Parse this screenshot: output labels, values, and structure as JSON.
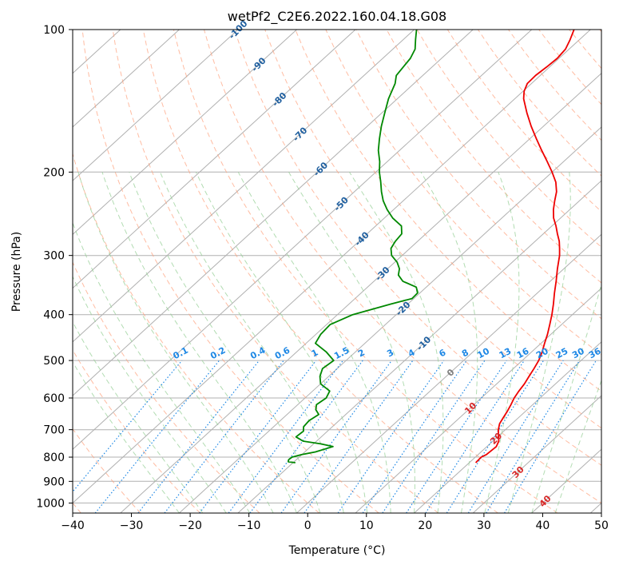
{
  "chart_data": {
    "type": "line",
    "title": "wetPf2_C2E6.2022.160.04.18.G08",
    "xlabel": "Temperature (°C)",
    "ylabel": "Pressure (hPa)",
    "xlim": [
      -40,
      50
    ],
    "ylim": [
      1050,
      100
    ],
    "y_scale": "log",
    "skew": true,
    "grid": true,
    "x_ticks": [
      -40,
      -30,
      -20,
      -10,
      0,
      10,
      20,
      30,
      40,
      50
    ],
    "y_ticks": [
      100,
      200,
      300,
      400,
      500,
      600,
      700,
      800,
      900,
      1000
    ],
    "series": [
      {
        "key": "temperature",
        "color": "#ee0000",
        "points": [
          [
            822,
            21.1
          ],
          [
            800,
            21.0
          ],
          [
            790,
            21.4
          ],
          [
            760,
            21.6
          ],
          [
            740,
            21.0
          ],
          [
            720,
            19.9
          ],
          [
            700,
            18.8
          ],
          [
            680,
            17.9
          ],
          [
            660,
            17.4
          ],
          [
            640,
            16.9
          ],
          [
            620,
            16.3
          ],
          [
            600,
            15.6
          ],
          [
            580,
            15.1
          ],
          [
            560,
            14.7
          ],
          [
            540,
            14.1
          ],
          [
            520,
            13.5
          ],
          [
            500,
            12.8
          ],
          [
            480,
            11.8
          ],
          [
            460,
            10.6
          ],
          [
            440,
            9.4
          ],
          [
            420,
            8.0
          ],
          [
            400,
            6.5
          ],
          [
            380,
            4.8
          ],
          [
            360,
            2.9
          ],
          [
            340,
            1.0
          ],
          [
            320,
            -1.1
          ],
          [
            300,
            -3.2
          ],
          [
            290,
            -4.5
          ],
          [
            280,
            -5.9
          ],
          [
            270,
            -7.6
          ],
          [
            260,
            -9.3
          ],
          [
            250,
            -11.2
          ],
          [
            240,
            -12.8
          ],
          [
            230,
            -14.2
          ],
          [
            220,
            -15.6
          ],
          [
            210,
            -17.5
          ],
          [
            200,
            -20.0
          ],
          [
            190,
            -22.8
          ],
          [
            180,
            -25.8
          ],
          [
            170,
            -28.9
          ],
          [
            160,
            -32.1
          ],
          [
            150,
            -35.3
          ],
          [
            140,
            -38.5
          ],
          [
            135,
            -39.8
          ],
          [
            130,
            -40.7
          ],
          [
            125,
            -40.8
          ],
          [
            120,
            -40.5
          ],
          [
            115,
            -40.3
          ],
          [
            110,
            -40.6
          ],
          [
            105,
            -41.6
          ],
          [
            100,
            -42.8
          ]
        ]
      },
      {
        "key": "dewpoint",
        "color": "#008800",
        "points": [
          [
            822,
            -9.6
          ],
          [
            818,
            -11.0
          ],
          [
            810,
            -11.3
          ],
          [
            800,
            -11.2
          ],
          [
            790,
            -10.0
          ],
          [
            780,
            -8.2
          ],
          [
            760,
            -6.2
          ],
          [
            750,
            -8.8
          ],
          [
            740,
            -12.3
          ],
          [
            725,
            -14.3
          ],
          [
            705,
            -14.1
          ],
          [
            690,
            -14.9
          ],
          [
            670,
            -15.1
          ],
          [
            650,
            -14.6
          ],
          [
            635,
            -16.0
          ],
          [
            620,
            -16.8
          ],
          [
            600,
            -16.4
          ],
          [
            580,
            -17.1
          ],
          [
            560,
            -20.0
          ],
          [
            540,
            -21.5
          ],
          [
            520,
            -22.5
          ],
          [
            500,
            -22.1
          ],
          [
            480,
            -24.9
          ],
          [
            460,
            -28.4
          ],
          [
            440,
            -29.2
          ],
          [
            420,
            -29.4
          ],
          [
            400,
            -27.4
          ],
          [
            380,
            -22.9
          ],
          [
            370,
            -20.3
          ],
          [
            360,
            -20.4
          ],
          [
            350,
            -21.7
          ],
          [
            340,
            -25.1
          ],
          [
            330,
            -27.0
          ],
          [
            320,
            -28.0
          ],
          [
            310,
            -29.6
          ],
          [
            300,
            -31.8
          ],
          [
            290,
            -33.2
          ],
          [
            280,
            -33.8
          ],
          [
            270,
            -34.1
          ],
          [
            260,
            -35.6
          ],
          [
            250,
            -38.6
          ],
          [
            240,
            -41.1
          ],
          [
            230,
            -43.4
          ],
          [
            220,
            -45.4
          ],
          [
            210,
            -47.3
          ],
          [
            200,
            -49.4
          ],
          [
            190,
            -51.3
          ],
          [
            180,
            -53.6
          ],
          [
            170,
            -55.6
          ],
          [
            160,
            -57.6
          ],
          [
            150,
            -59.5
          ],
          [
            140,
            -61.5
          ],
          [
            130,
            -63.2
          ],
          [
            125,
            -64.5
          ],
          [
            120,
            -64.9
          ],
          [
            115,
            -65.3
          ],
          [
            110,
            -66.2
          ],
          [
            105,
            -67.9
          ],
          [
            100,
            -69.6
          ]
        ]
      }
    ],
    "isotherm_labels": [
      "-100",
      "-90",
      "-80",
      "-70",
      "-60",
      "-50",
      "-40",
      "-30",
      "-20",
      "-10",
      "0",
      "10",
      "20",
      "30",
      "40"
    ],
    "mixing_ratio_labels": [
      "0.1",
      "0.2",
      "0.4",
      "0.6",
      "1",
      "1.5",
      "2",
      "3",
      "4",
      "6",
      "8",
      "10",
      "13",
      "16",
      "20",
      "25",
      "30",
      "36"
    ],
    "colors": {
      "isotherm_label_cold": "#1f5f9f",
      "isotherm_label_warm": "#d62728",
      "isotherm_label_zero": "#808080",
      "mixing_ratio": "#1e88e5",
      "dry_adiabat": "#ffa07a",
      "moist_adiabat": "#98d098",
      "isotherm_line": "#b0b0b0"
    }
  }
}
